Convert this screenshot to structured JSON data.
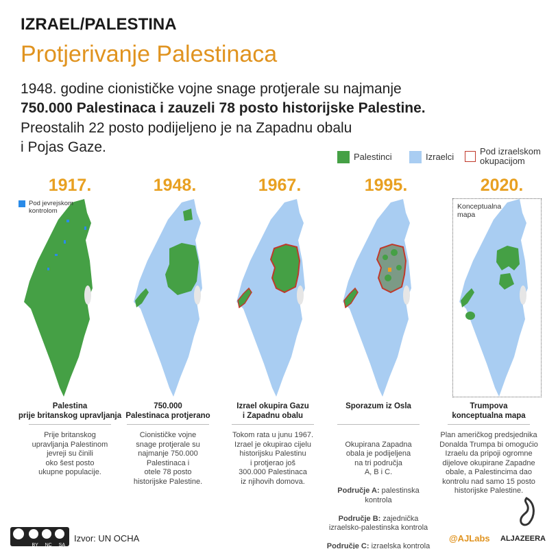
{
  "header": {
    "kicker": "IZRAEL/PALESTINA",
    "title": "Protjerivanje Palestinaca",
    "lead": {
      "line1": "1948. godine cionističke vojne snage protjerale su najmanje",
      "bold": "750.000 Palestinaca i zauzeli 78 posto historijske Palestine.",
      "line3": "Preostalih 22 posto podijeljeno je na Zapadnu obalu",
      "line4": "i Pojas Gaze."
    }
  },
  "legend": [
    "Palestinci",
    "Izraelci",
    "Pod izraelskom okupacijom"
  ],
  "panels": [
    {
      "year": "1917.",
      "note": "Pod jevrejskom\nkontrolom",
      "caption": "Palestina\nprije britanskog upravljanja",
      "description": "Prije britanskog\nupravljanja Palestinom\njevreji su činili\noko šest posto\nukupne populacije."
    },
    {
      "year": "1948.",
      "caption": "750.000\nPalestinaca protjerano",
      "description": "Cionističke vojne\nsnage protjerale su\nnajmanje 750.000\nPalestinaca i\notele 78 posto\nhistorijske Palestine."
    },
    {
      "year": "1967.",
      "caption": "Izrael okupira Gazu\ni Zapadnu obalu",
      "description": "Tokom rata u junu 1967.\nIzrael je okupirao cijelu\nhistorijsku Palestinu\ni protjerao još\n300.000 Palestinaca\niz njihovih domova."
    },
    {
      "year": "1995.",
      "caption": "Sporazum iz Osla",
      "description": "Okupirana Zapadna\nobala je podijeljena\nna tri područja\nA, B i C.",
      "areas": [
        {
          "label": "Područje A:",
          "text": "palestinska\nkontrola"
        },
        {
          "label": "Područje B:",
          "text": "zajednička\nizraelsko-palestinska kontrola"
        },
        {
          "label": "Područje C:",
          "text": "izraelska kontrola"
        }
      ]
    },
    {
      "year": "2020.",
      "note": "Konceptualna\nmapa",
      "caption": "Trumpova\nkonceptualna mapa",
      "description": "Plan američkog predsjednika\nDonalda Trumpa bi omogućio\nIzraelu da pripoji ogromne\ndijelove okupirane Zapadne\nobale, a Palestincima dao\nkontrolu nad samo 15 posto\nhistorijske Palestine."
    }
  ],
  "footer": {
    "license": "BY NC SA",
    "source": "Izvor: UN OCHA",
    "handle": "@AJLabs",
    "brand": "ALJAZEERA"
  }
}
